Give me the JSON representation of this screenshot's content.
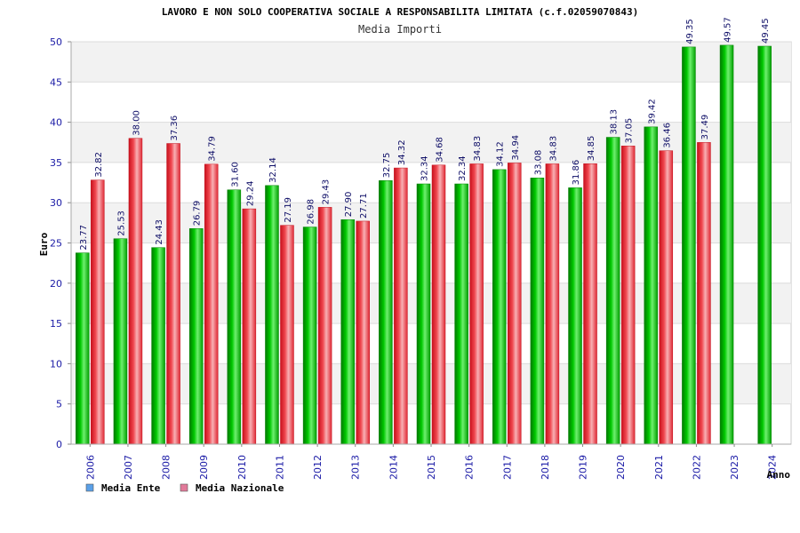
{
  "chart_data": {
    "type": "bar",
    "title": "LAVORO E NON SOLO COOPERATIVA SOCIALE A RESPONSABILITA LIMITATA (c.f.02059070843)",
    "subtitle": "Media Importi",
    "xlabel": "Anno",
    "ylabel": "Euro",
    "ylim": [
      0,
      50
    ],
    "yticks": [
      0,
      5,
      10,
      15,
      20,
      25,
      30,
      35,
      40,
      45,
      50
    ],
    "categories": [
      "2006",
      "2007",
      "2008",
      "2009",
      "2010",
      "2011",
      "2012",
      "2013",
      "2014",
      "2015",
      "2016",
      "2017",
      "2018",
      "2019",
      "2020",
      "2021",
      "2022",
      "2023",
      "2024"
    ],
    "series": [
      {
        "name": "Media Ente",
        "color": "#00b000",
        "legend_color": "#5aa0e8",
        "values": [
          23.77,
          25.53,
          24.43,
          26.79,
          31.6,
          32.14,
          26.98,
          27.9,
          32.75,
          32.34,
          32.34,
          34.12,
          33.08,
          31.86,
          38.13,
          39.42,
          49.35,
          49.57,
          49.45
        ],
        "labels": [
          "23.77",
          "25.53",
          "24.43",
          "26.79",
          "31.60",
          "32.14",
          "26.98",
          "27.90",
          "32.75",
          "32.34",
          "32.34",
          "34.12",
          "33.08",
          "31.86",
          "38.13",
          "39.42",
          "49.35",
          "49.57",
          "49.45"
        ]
      },
      {
        "name": "Media Nazionale",
        "color": "#e8303c",
        "legend_color": "#e27a9a",
        "values": [
          32.82,
          38.0,
          37.36,
          34.79,
          29.24,
          27.19,
          29.43,
          27.71,
          34.32,
          34.68,
          34.83,
          34.94,
          34.83,
          34.85,
          37.05,
          36.46,
          37.49,
          null,
          null
        ],
        "labels": [
          "32.82",
          "38.00",
          "37.36",
          "34.79",
          "29.24",
          "27.19",
          "29.43",
          "27.71",
          "34.32",
          "34.68",
          "34.83",
          "34.94",
          "34.83",
          "34.85",
          "37.05",
          "36.46",
          "37.49",
          null,
          null
        ]
      }
    ],
    "grid": true,
    "legend_position": "bottom-left"
  }
}
